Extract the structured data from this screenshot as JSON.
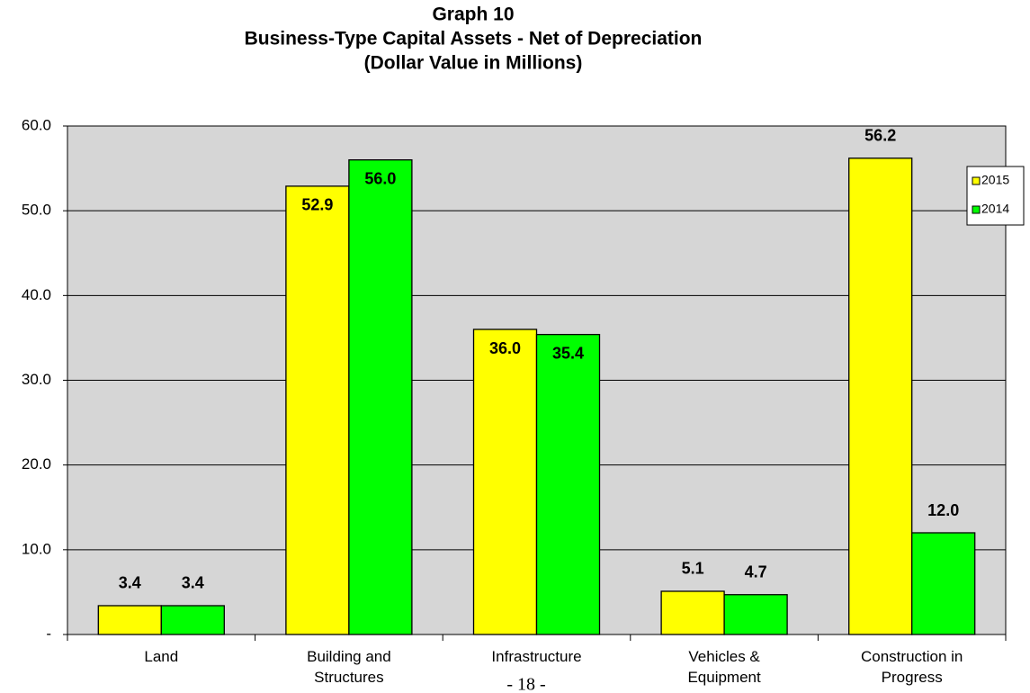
{
  "chart_data": {
    "type": "bar",
    "title": "Graph 10",
    "subtitle": "Business-Type Capital Assets - Net of Depreciation",
    "note": "(Dollar Value in Millions)",
    "categories": [
      "Land",
      "Building and Structures",
      "Infrastructure",
      "Vehicles & Equipment",
      "Construction in Progress"
    ],
    "series": [
      {
        "name": "2015",
        "color": "#ffff00",
        "values": [
          3.4,
          52.9,
          36.0,
          5.1,
          56.2
        ],
        "value_labels": [
          "3.4",
          "52.9",
          "36.0",
          "5.1",
          "56.2"
        ]
      },
      {
        "name": "2014",
        "color": "#00ff00",
        "values": [
          3.4,
          56.0,
          35.4,
          4.7,
          12.0
        ],
        "value_labels": [
          "3.4",
          "56.0",
          "35.4",
          "4.7",
          "12.0"
        ]
      }
    ],
    "ylim": [
      0,
      60
    ],
    "yticks": [
      {
        "value": 0,
        "label": "-"
      },
      {
        "value": 10,
        "label": "10.0"
      },
      {
        "value": 20,
        "label": "20.0"
      },
      {
        "value": 30,
        "label": "30.0"
      },
      {
        "value": 40,
        "label": "40.0"
      },
      {
        "value": 50,
        "label": "50.0"
      },
      {
        "value": 60,
        "label": "60.0"
      }
    ],
    "grid": true,
    "legend": "right"
  },
  "footer": "- 18 -"
}
